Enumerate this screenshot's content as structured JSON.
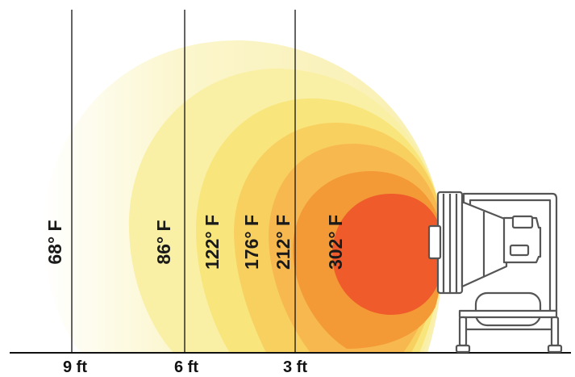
{
  "heat_zones": [
    {
      "label": "68° F",
      "color": "#fbf6cc"
    },
    {
      "label": "86° F",
      "color": "#f9f0a6"
    },
    {
      "label": "122° F",
      "color": "#f8e57c"
    },
    {
      "label": "176° F",
      "color": "#f8d060"
    },
    {
      "label": "212° F",
      "color": "#f7b94f"
    },
    {
      "label": "302° F",
      "color": "#f39a37"
    },
    {
      "label": "",
      "color": "#ef5b2a"
    }
  ],
  "distances": [
    {
      "label": "9 ft"
    },
    {
      "label": "6 ft"
    },
    {
      "label": "3 ft"
    }
  ],
  "heater_icon": "forced-air-heater-icon"
}
